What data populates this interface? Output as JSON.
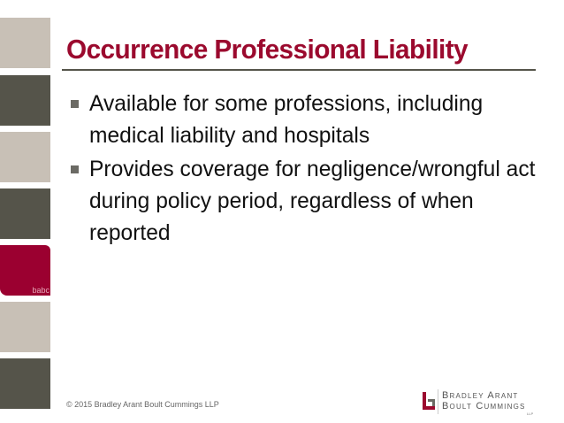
{
  "slide": {
    "title": "Occurrence Professional Liability",
    "bullets": [
      "Available for some professions, including medical liability and hospitals",
      "Provides coverage for negligence/wrongful act during policy period, regardless of when reported"
    ],
    "sidebar_tag": "babc",
    "footer": "© 2015 Bradley Arant Boult Cummings LLP"
  },
  "logo": {
    "line1": "Bradley Arant",
    "line2": "Boult Cummings",
    "suffix": "LLP"
  },
  "colors": {
    "accent": "#9b0a2e",
    "dark": "#55544a",
    "light": "#c8c0b6"
  }
}
